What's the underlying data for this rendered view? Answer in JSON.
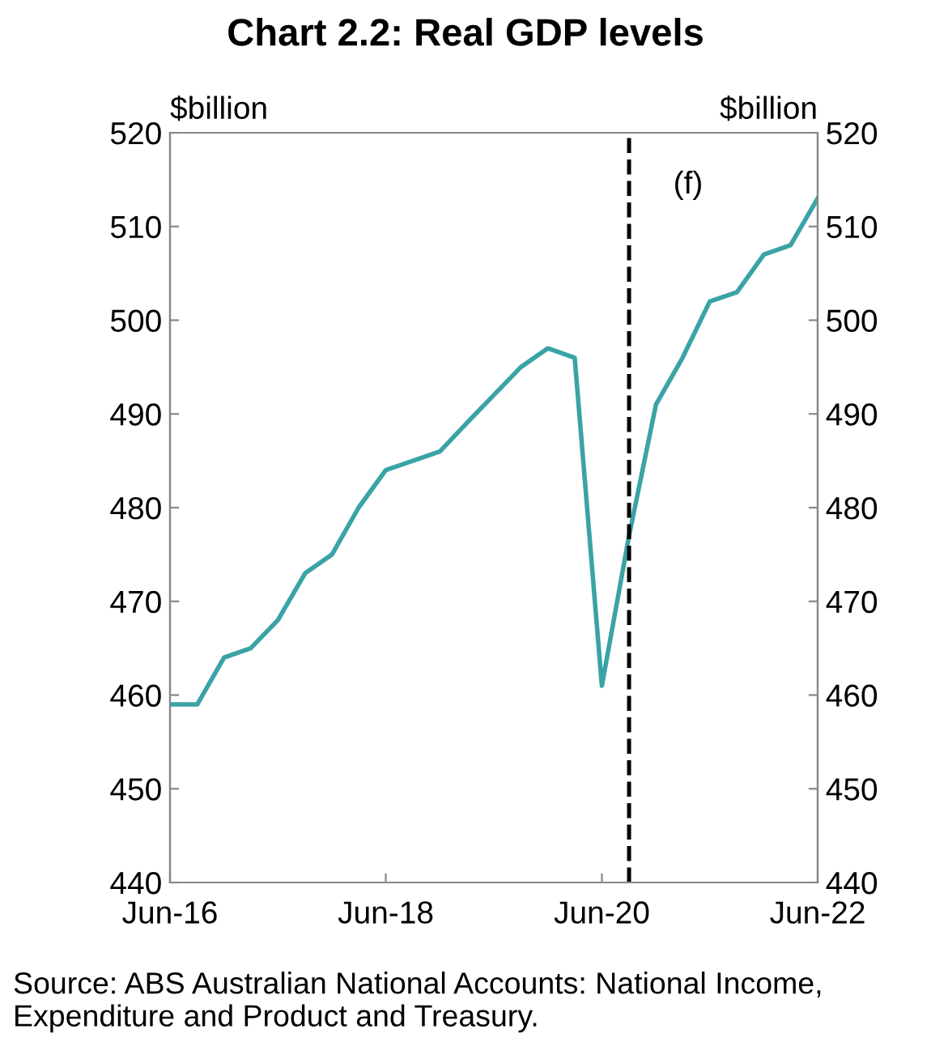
{
  "chart_data": {
    "type": "line",
    "title": "Chart 2.2: Real GDP levels",
    "ylabel": "$billion",
    "y2label": "$billion",
    "x": [
      "2016-06",
      "2016-09",
      "2016-12",
      "2017-03",
      "2017-06",
      "2017-09",
      "2017-12",
      "2018-03",
      "2018-06",
      "2018-09",
      "2018-12",
      "2019-03",
      "2019-06",
      "2019-09",
      "2019-12",
      "2020-03",
      "2020-06",
      "2020-09",
      "2020-12",
      "2021-03",
      "2021-06",
      "2021-09",
      "2021-12",
      "2022-03",
      "2022-06"
    ],
    "series": [
      {
        "color": "#3aa3a6",
        "values": [
          459,
          459,
          464,
          465,
          468,
          473,
          475,
          480,
          484,
          485,
          486,
          489,
          492,
          495,
          497,
          496,
          461,
          477,
          491,
          496,
          502,
          503,
          507,
          508,
          513
        ]
      }
    ],
    "xlim": [
      "2016-06",
      "2022-06"
    ],
    "xticks": [
      {
        "value": "2016-06",
        "label": "Jun-16"
      },
      {
        "value": "2018-06",
        "label": "Jun-18"
      },
      {
        "value": "2020-06",
        "label": "Jun-20"
      },
      {
        "value": "2022-06",
        "label": "Jun-22"
      }
    ],
    "ylim": [
      440,
      520
    ],
    "yticks": [
      440,
      450,
      460,
      470,
      480,
      490,
      500,
      510,
      520
    ],
    "y2lim": [
      440,
      520
    ],
    "y2ticks": [
      440,
      450,
      460,
      470,
      480,
      490,
      500,
      510,
      520
    ],
    "ref_lines": [
      {
        "axis": "x",
        "value": "2020-09",
        "color": "#000000",
        "line_style": "dashed"
      }
    ],
    "annotations": [
      "(f)",
      "Source: ABS Australian National Accounts: National Income, Expenditure and Product and Treasury."
    ],
    "grid": false,
    "legend": false,
    "marker": "none",
    "line_style": "solid"
  }
}
